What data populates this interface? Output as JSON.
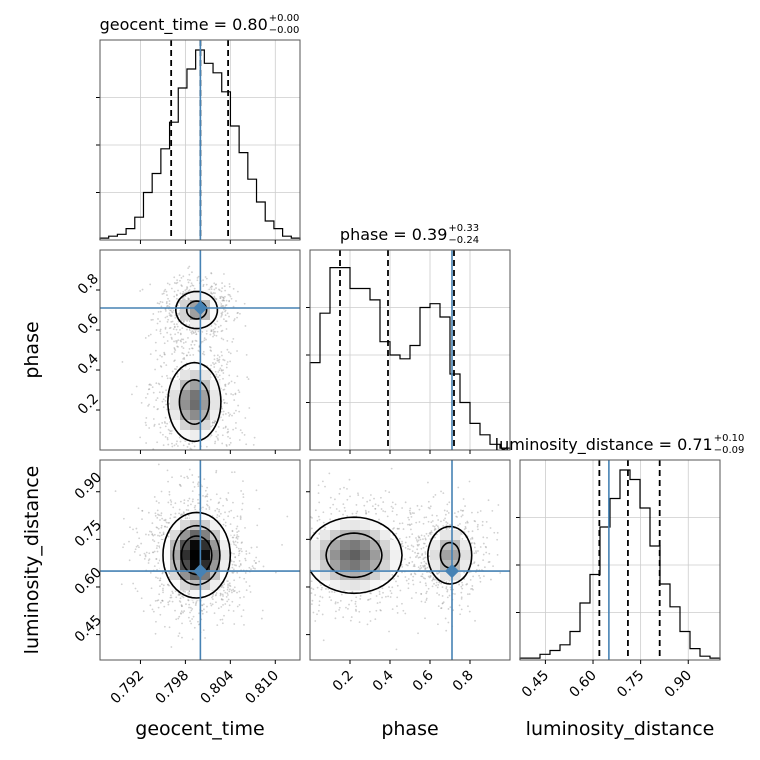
{
  "chart_data": {
    "type": "corner",
    "parameters": [
      "geocent_time",
      "phase",
      "luminosity_distance"
    ],
    "truths": {
      "geocent_time": 0.8,
      "phase": 0.71,
      "luminosity_distance": 0.65
    },
    "truth_color": "#4682b4",
    "hist_color": "#000000",
    "grid": true,
    "axes": {
      "geocent_time": {
        "range": [
          0.7866,
          0.8133
        ],
        "ticks": [
          0.792,
          0.798,
          0.804,
          0.81
        ],
        "tick_labels": [
          "0.792",
          "0.798",
          "0.804",
          "0.810"
        ],
        "label": "geocent_time"
      },
      "phase": {
        "range": [
          0.0,
          1.0
        ],
        "ticks": [
          0.2,
          0.4,
          0.6,
          0.8
        ],
        "tick_labels": [
          "0.2",
          "0.4",
          "0.6",
          "0.8"
        ],
        "label": "phase"
      },
      "luminosity_distance": {
        "range": [
          0.37,
          1.0
        ],
        "ticks": [
          0.45,
          0.6,
          0.75,
          0.9
        ],
        "tick_labels": [
          "0.45",
          "0.60",
          "0.75",
          "0.90"
        ],
        "label": "luminosity_distance"
      }
    },
    "titles": [
      {
        "param": "geocent_time",
        "main": "geocent_time = 0.80",
        "plus": "+0.00",
        "minus": "−0.00"
      },
      {
        "param": "phase",
        "main": "phase = 0.39",
        "plus": "+0.33",
        "minus": "−0.24"
      },
      {
        "param": "luminosity_distance",
        "main": "luminosity_distance = 0.71",
        "plus": "+0.10",
        "minus": "−0.09"
      }
    ],
    "marginals": [
      {
        "param": "geocent_time",
        "quantiles": [
          0.7961,
          0.8,
          0.8037
        ],
        "hist": [
          0.01,
          0.02,
          0.03,
          0.06,
          0.12,
          0.25,
          0.35,
          0.48,
          0.62,
          0.8,
          0.9,
          1.0,
          0.93,
          0.88,
          0.78,
          0.6,
          0.46,
          0.32,
          0.2,
          0.1,
          0.06,
          0.02,
          0.01
        ]
      },
      {
        "param": "phase",
        "quantiles": [
          0.15,
          0.39,
          0.72
        ],
        "hist": [
          0.46,
          0.72,
          0.96,
          0.96,
          0.85,
          0.85,
          0.79,
          0.57,
          0.5,
          0.48,
          0.55,
          0.75,
          0.77,
          0.7,
          0.4,
          0.25,
          0.14,
          0.08,
          0.03,
          0.01
        ]
      },
      {
        "param": "luminosity_distance",
        "quantiles": [
          0.62,
          0.71,
          0.81
        ],
        "hist": [
          0.01,
          0.01,
          0.03,
          0.05,
          0.08,
          0.15,
          0.3,
          0.45,
          0.7,
          0.85,
          1.0,
          0.95,
          0.8,
          0.6,
          0.4,
          0.28,
          0.15,
          0.06,
          0.02,
          0.01
        ]
      }
    ],
    "joint": [
      {
        "x": "geocent_time",
        "y": "phase",
        "modes": [
          {
            "x": 0.7995,
            "y": 0.7,
            "sx": 0.0015,
            "sy": 0.05,
            "w": 0.8
          },
          {
            "x": 0.7992,
            "y": 0.24,
            "sx": 0.0018,
            "sy": 0.1,
            "w": 1.0
          }
        ]
      },
      {
        "x": "geocent_time",
        "y": "luminosity_distance",
        "modes": [
          {
            "x": 0.7995,
            "y": 0.7,
            "sx": 0.002,
            "sy": 0.06,
            "w": 1.0
          }
        ]
      },
      {
        "x": "phase",
        "y": "luminosity_distance",
        "modes": [
          {
            "x": 0.22,
            "y": 0.7,
            "sx": 0.12,
            "sy": 0.06,
            "w": 1.0
          },
          {
            "x": 0.7,
            "y": 0.7,
            "sx": 0.06,
            "sy": 0.05,
            "w": 0.7
          }
        ]
      }
    ]
  }
}
